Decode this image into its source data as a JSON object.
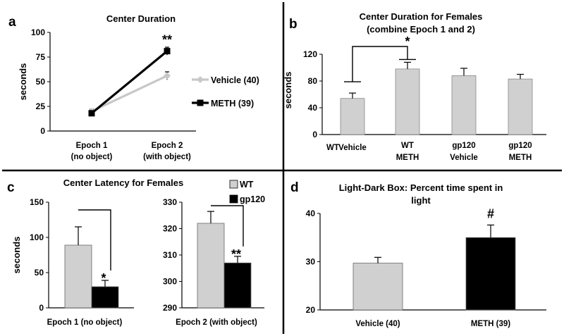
{
  "chart_data": [
    {
      "id": "a",
      "panel_label": "a",
      "type": "line",
      "title": "Center Duration",
      "ylabel": "seconds",
      "ylim": [
        0,
        100
      ],
      "yticks": [
        0,
        25,
        50,
        75,
        100
      ],
      "categories": [
        [
          "Epoch 1",
          "(no object)"
        ],
        [
          "Epoch 2",
          "(with object)"
        ]
      ],
      "series": [
        {
          "name": "Vehicle (40)",
          "color": "#c8c8c8",
          "marker": "diamond",
          "values": [
            20,
            56
          ],
          "errors": [
            2,
            4
          ]
        },
        {
          "name": "METH (39)",
          "color": "#000000",
          "marker": "square",
          "values": [
            18,
            81
          ],
          "errors": [
            2,
            4
          ]
        }
      ],
      "annotations": [
        {
          "text": "**",
          "category": 1,
          "value": 91
        }
      ]
    },
    {
      "id": "b",
      "panel_label": "b",
      "type": "bar",
      "title": [
        "Center Duration for Females",
        "(combine Epoch 1 and 2)"
      ],
      "ylabel": "seconds",
      "ylim": [
        0,
        120
      ],
      "yticks": [
        0,
        40,
        80,
        120
      ],
      "extra_labels": [
        "WT"
      ],
      "categories": [
        [
          "Vehicle"
        ],
        [
          "WT",
          "METH"
        ],
        [
          "gp120",
          "Vehicle"
        ],
        [
          "gp120",
          "METH"
        ]
      ],
      "values": [
        54,
        98,
        88,
        83
      ],
      "errors": [
        8,
        10,
        11,
        7
      ],
      "bar_color": "#d0d0d0",
      "significance": [
        {
          "from": 0,
          "to": 1,
          "text": "*"
        }
      ]
    },
    {
      "id": "c1",
      "panel_label": "c",
      "type": "bar",
      "title": "Center Latency for Females",
      "ylabel": "seconds",
      "ylim": [
        0,
        150
      ],
      "yticks": [
        0,
        50,
        100,
        150
      ],
      "xlabel": "Epoch 1 (no object)",
      "series": [
        {
          "name": "WT",
          "color": "#d0d0d0",
          "value": 89,
          "error": 26
        },
        {
          "name": "gp120",
          "color": "#000000",
          "value": 30,
          "error": 9
        }
      ],
      "significance": [
        {
          "text": "*"
        }
      ]
    },
    {
      "id": "c2",
      "type": "bar",
      "ylim": [
        290,
        330
      ],
      "yticks": [
        290,
        300,
        310,
        320,
        330
      ],
      "xlabel": "Epoch 2 (with object)",
      "series": [
        {
          "name": "WT",
          "color": "#d0d0d0",
          "value": 322,
          "error": 4.5
        },
        {
          "name": "gp120",
          "color": "#000000",
          "value": 307,
          "error": 2.5
        }
      ],
      "significance": [
        {
          "text": "**"
        }
      ]
    },
    {
      "id": "d",
      "panel_label": "d",
      "type": "bar",
      "title": [
        "Light-Dark Box: Percent time spent in",
        "light"
      ],
      "ylim": [
        20,
        40
      ],
      "yticks": [
        20,
        30,
        40
      ],
      "categories": [
        "Vehicle (40)",
        "METH (39)"
      ],
      "values": [
        29.7,
        35.0
      ],
      "errors": [
        1.2,
        2.6
      ],
      "colors": [
        "#d0d0d0",
        "#000000"
      ],
      "annotations": [
        {
          "text": "#",
          "category": 1
        }
      ]
    }
  ]
}
